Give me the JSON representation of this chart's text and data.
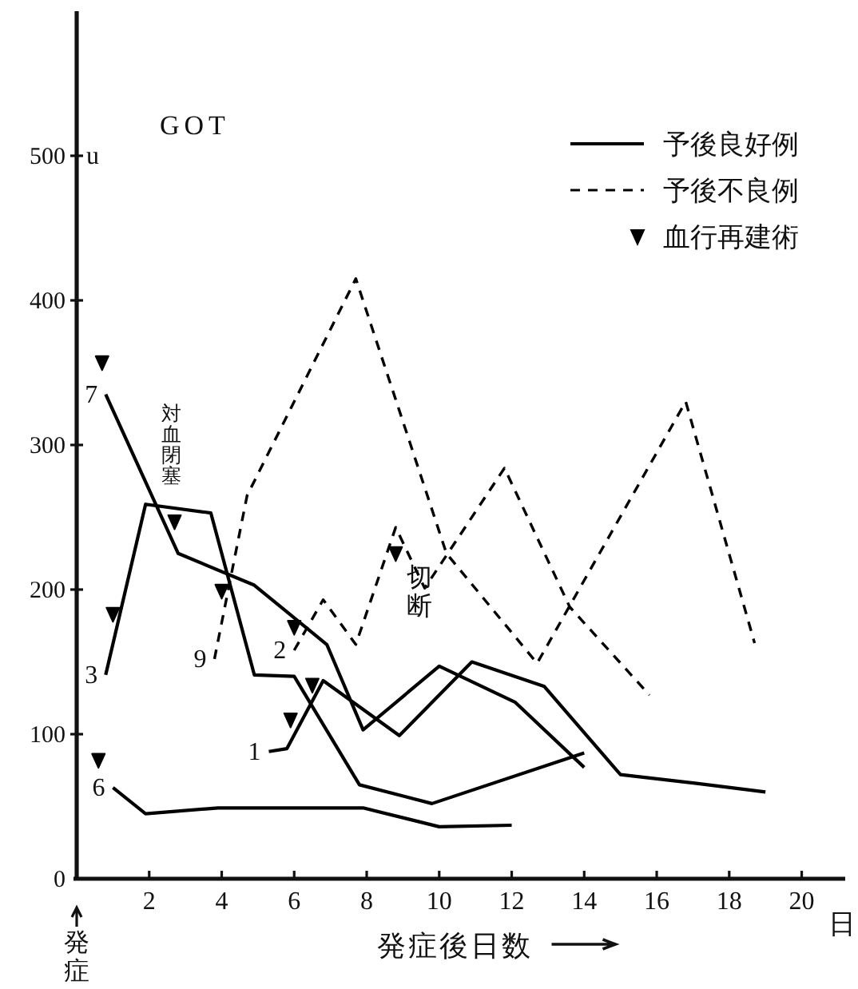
{
  "chart_data": {
    "type": "line",
    "title": "GOT",
    "xlabel": "発症後日数",
    "ylabel": "u",
    "xlim": [
      0,
      21.2
    ],
    "ylim": [
      0,
      600
    ],
    "xticks": [
      2,
      4,
      6,
      8,
      10,
      12,
      14,
      16,
      18,
      20
    ],
    "yticks": [
      0,
      100,
      200,
      300,
      400,
      500
    ],
    "legend": "top right",
    "series": [
      {
        "name": "予後良好例",
        "color": "#000000",
        "line_style": "solid",
        "x": [
          0.8,
          2.8,
          4.9,
          6.9,
          7.9,
          10,
          12.1,
          14,
          null,
          0.8,
          1.9,
          3.7,
          4.9,
          6,
          7.8,
          9.8,
          14,
          null,
          1,
          1.9,
          3.9,
          7.9,
          10,
          12,
          null,
          5.3,
          5.8,
          6.8,
          8.9,
          10.9,
          12.9,
          15,
          17.1,
          19
        ],
        "values": [
          335,
          225,
          203,
          162,
          103,
          147,
          122,
          77,
          null,
          141,
          259,
          253,
          141,
          140,
          65,
          52,
          87,
          null,
          63,
          45,
          49,
          49,
          36,
          37,
          null,
          88,
          90,
          137,
          99,
          150,
          133,
          72,
          66,
          60
        ]
      },
      {
        "name": "予後不良例",
        "color": "#000000",
        "line_style": "dashed",
        "x": [
          3.8,
          4.7,
          7.7,
          10.2,
          12.7,
          16.8,
          18.7,
          null,
          6,
          6.8,
          7.7,
          8.8,
          9.6,
          11.8,
          13.6,
          15.8
        ],
        "values": [
          152,
          265,
          415,
          225,
          149,
          330,
          163,
          null,
          158,
          193,
          162,
          243,
          201,
          284,
          188,
          127
        ]
      },
      {
        "name": "血行再建術",
        "type": "scatter",
        "marker": "triangle",
        "color": "#000000",
        "x": [
          0.7,
          1,
          0.6,
          2.7,
          4,
          6,
          5.9,
          6.5,
          8.8
        ],
        "values": [
          357,
          183,
          82,
          247,
          199,
          174,
          110,
          134,
          225
        ]
      }
    ],
    "annotations": [
      {
        "text": "7",
        "x": 0.8,
        "y": 335
      },
      {
        "text": "3",
        "x": 0.8,
        "y": 141
      },
      {
        "text": "6",
        "x": 1,
        "y": 63
      },
      {
        "text": "1",
        "x": 5.3,
        "y": 88
      },
      {
        "text": "9",
        "x": 3.8,
        "y": 152
      },
      {
        "text": "2",
        "x": 6,
        "y": 158
      },
      {
        "text": "対血閉塞",
        "x": 2.7,
        "y": 247
      },
      {
        "text": "切断",
        "x": 8.8,
        "y": 225
      },
      "発症",
      "日"
    ]
  }
}
